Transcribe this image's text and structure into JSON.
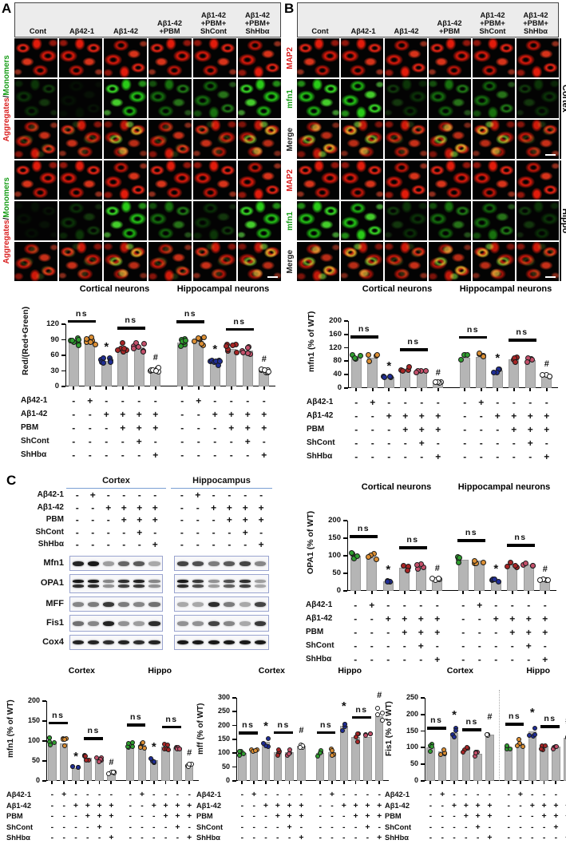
{
  "figure": {
    "panel_labels": {
      "A": "A",
      "B": "B",
      "C": "C"
    }
  },
  "treatments": {
    "row_labels": [
      "Aβ42-1",
      "Aβ1-42",
      "PBM",
      "ShCont",
      "ShHbα"
    ],
    "pattern_per_group": [
      [
        "-",
        "+",
        "-",
        "-",
        "-",
        "-"
      ],
      [
        "-",
        "-",
        "+",
        "+",
        "+",
        "+"
      ],
      [
        "-",
        "-",
        "-",
        "+",
        "+",
        "+"
      ],
      [
        "-",
        "-",
        "-",
        "-",
        "+",
        "-"
      ],
      [
        "-",
        "-",
        "-",
        "-",
        "-",
        "+"
      ]
    ]
  },
  "panelA": {
    "label": "A",
    "col_headers": [
      "Cont",
      "Aβ42-1",
      "Aβ1-42",
      "Aβ1-42\n+PBM",
      "Aβ1-42\n+PBM+\nShCont",
      "Aβ1-42\n+PBM+\nShHbα"
    ],
    "side_label": {
      "aggregates": "Aggregates",
      "separator": "/",
      "monomers": "Monomers"
    },
    "image_rows": [
      {
        "type": "red",
        "tones": [
          "hi",
          "hi",
          "hi",
          "hi",
          "hi",
          "hi"
        ]
      },
      {
        "type": "green",
        "tones": [
          "dim",
          "off",
          "hi",
          "mid",
          "mid",
          "hi"
        ]
      },
      {
        "type": "merge",
        "tones": [
          "mid",
          "mid",
          "hi",
          "mid",
          "mid",
          "hi"
        ]
      },
      {
        "type": "red",
        "tones": [
          "hi",
          "hi",
          "hi",
          "hi",
          "hi",
          "hi"
        ]
      },
      {
        "type": "green",
        "tones": [
          "off",
          "dim",
          "hi",
          "mid",
          "dim",
          "hi"
        ]
      },
      {
        "type": "merge",
        "tones": [
          "mid",
          "mid",
          "hi",
          "mid",
          "mid",
          "hi"
        ]
      }
    ],
    "scalebars": [
      [
        5,
        5
      ]
    ]
  },
  "panelB": {
    "label": "B",
    "col_headers": [
      "Cont",
      "Aβ42-1",
      "Aβ1-42",
      "Aβ1-42\n+PBM",
      "Aβ1-42\n+PBM+\nShCont",
      "Aβ1-42\n+PBM+\nShHbα"
    ],
    "row_labels": [
      {
        "text": "MAP2",
        "color": "#d91f1f"
      },
      {
        "text": "mfn1",
        "color": "#1a9e1a"
      },
      {
        "text": "Merge",
        "color": "#222222"
      },
      {
        "text": "MAP2",
        "color": "#d91f1f"
      },
      {
        "text": "mfn1",
        "color": "#1a9e1a"
      },
      {
        "text": "Merge",
        "color": "#222222"
      }
    ],
    "region_labels": [
      "Cortex",
      "Hippo"
    ],
    "image_rows": [
      {
        "type": "red",
        "tones": [
          "hi",
          "hi",
          "hi",
          "hi",
          "hi",
          "hi"
        ]
      },
      {
        "type": "green",
        "tones": [
          "hi",
          "hi",
          "dim",
          "mid",
          "mid",
          "dim"
        ]
      },
      {
        "type": "merge",
        "tones": [
          "hi",
          "hi",
          "mid",
          "hi",
          "hi",
          "mid"
        ]
      },
      {
        "type": "red",
        "tones": [
          "hi",
          "hi",
          "hi",
          "hi",
          "hi",
          "hi"
        ]
      },
      {
        "type": "green",
        "tones": [
          "hi",
          "hi",
          "dim",
          "mid",
          "mid",
          "dim"
        ]
      },
      {
        "type": "merge",
        "tones": [
          "hi",
          "hi",
          "mid",
          "hi",
          "hi",
          "mid"
        ]
      }
    ],
    "scalebars": [
      [
        2,
        5
      ],
      [
        5,
        5
      ]
    ]
  },
  "panelC": {
    "label": "C",
    "blot_group_titles": [
      "Cortex",
      "Hippocampus"
    ],
    "blots": [
      {
        "name": "Mfn1",
        "double": false,
        "cortex": [
          0.95,
          1,
          0.4,
          0.65,
          0.7,
          0.35
        ],
        "hippo": [
          0.8,
          0.75,
          0.55,
          0.7,
          0.8,
          0.5
        ]
      },
      {
        "name": "OPA1",
        "double": true,
        "cortex": [
          1,
          1,
          0.5,
          0.9,
          0.95,
          0.5
        ],
        "hippo": [
          1,
          0.85,
          0.45,
          0.75,
          0.9,
          0.4
        ]
      },
      {
        "name": "MFF",
        "double": false,
        "cortex": [
          0.5,
          0.55,
          0.85,
          0.55,
          0.5,
          0.6
        ],
        "hippo": [
          0.35,
          0.35,
          0.9,
          0.55,
          0.35,
          0.8
        ]
      },
      {
        "name": "Fis1",
        "double": false,
        "cortex": [
          0.6,
          0.5,
          0.95,
          0.45,
          0.4,
          0.9
        ],
        "hippo": [
          0.45,
          0.45,
          0.8,
          0.5,
          0.35,
          0.85
        ]
      },
      {
        "name": "Cox4",
        "double": false,
        "cortex": [
          0.95,
          0.95,
          0.9,
          0.95,
          0.9,
          0.95
        ],
        "hippo": [
          1,
          1,
          1,
          1,
          1,
          1
        ]
      }
    ]
  },
  "significance": {
    "ns_label": "ns",
    "ns_pairs": [
      [
        0,
        1
      ],
      [
        3,
        4
      ]
    ],
    "star": {
      "bar": 2,
      "symbol": "*"
    },
    "hash": {
      "bar": 5,
      "symbol": "#"
    }
  },
  "chart_data": [
    {
      "id": "red_green_ratio",
      "type": "bar",
      "categories": [
        "Cont",
        "Aβ42-1",
        "Aβ1-42",
        "Aβ1-42+PBM",
        "Aβ1-42+PBM+ShCont",
        "Aβ1-42+PBM+ShHbα"
      ],
      "ylabel": "Red/(Red+Green)",
      "ylim": [
        0,
        120
      ],
      "ystep": 30,
      "series": [
        {
          "name": "Cortical neurons",
          "values": [
            85,
            88,
            50,
            75,
            75,
            32
          ]
        },
        {
          "name": "Hippocampal neurons",
          "values": [
            85,
            87,
            45,
            73,
            70,
            30
          ]
        }
      ],
      "annotations": [
        "ns: bars 1-2",
        "* bar 3",
        "ns: bars 4-5",
        "# bar 6"
      ]
    },
    {
      "id": "mfn1_icc",
      "type": "bar",
      "categories": [
        "Cont",
        "Aβ42-1",
        "Aβ1-42",
        "Aβ1-42+PBM",
        "Aβ1-42+PBM+ShCont",
        "Aβ1-42+PBM+ShHbα"
      ],
      "ylabel": "mfn1 (% of WT)",
      "ylim": [
        0,
        200
      ],
      "ystep": 40,
      "series": [
        {
          "name": "Cortical neurons",
          "values": [
            95,
            90,
            33,
            57,
            52,
            17
          ]
        },
        {
          "name": "Hippocampal neurons",
          "values": [
            90,
            93,
            52,
            85,
            83,
            38
          ]
        }
      ],
      "annotations": [
        "ns: bars 1-2",
        "* bar 3",
        "ns: bars 4-5",
        "# bar 6"
      ]
    },
    {
      "id": "opa1_wb",
      "type": "bar",
      "categories": [
        "Cont",
        "Aβ42-1",
        "Aβ1-42",
        "Aβ1-42+PBM",
        "Aβ1-42+PBM+ShCont",
        "Aβ1-42+PBM+ShHbα"
      ],
      "ylabel": "OPA1 (% of WT)",
      "ylim": [
        0,
        200
      ],
      "ystep": 50,
      "series": [
        {
          "name": "Cortical neurons",
          "values": [
            100,
            95,
            28,
            65,
            68,
            33
          ]
        },
        {
          "name": "Hippocampal neurons",
          "values": [
            88,
            87,
            30,
            75,
            75,
            30
          ]
        }
      ],
      "annotations": [
        "ns: bars 1-2",
        "* bar 3",
        "ns: bars 4-5",
        "# bar 6"
      ]
    },
    {
      "id": "mfn1_wb",
      "type": "bar",
      "categories": [
        "Cont",
        "Aβ42-1",
        "Aβ1-42",
        "Aβ1-42+PBM",
        "Aβ1-42+PBM+ShCont",
        "Aβ1-42+PBM+ShHbα"
      ],
      "ylabel": "mfn1 (% of WT)",
      "ylim": [
        0,
        200
      ],
      "ystep": 50,
      "series": [
        {
          "name": "Cortex",
          "values": [
            97,
            95,
            33,
            58,
            53,
            20
          ]
        },
        {
          "name": "Hippo",
          "values": [
            92,
            90,
            52,
            87,
            85,
            40
          ]
        }
      ],
      "annotations": [
        "ns: bars 1-2",
        "* bar 3",
        "ns: bars 4-5",
        "# bar 6"
      ]
    },
    {
      "id": "mff_wb",
      "type": "bar",
      "categories": [
        "Cont",
        "Aβ42-1",
        "Aβ1-42",
        "Aβ1-42+PBM",
        "Aβ1-42+PBM+ShCont",
        "Aβ1-42+PBM+ShHbα"
      ],
      "ylabel": "mff (% of WT)",
      "ylim": [
        0,
        300
      ],
      "ystep": 50,
      "series": [
        {
          "name": "Cortex",
          "values": [
            100,
            103,
            140,
            103,
            105,
            128
          ]
        },
        {
          "name": "Hippo",
          "values": [
            100,
            105,
            200,
            160,
            158,
            235
          ]
        }
      ],
      "annotations": [
        "ns: bars 1-2",
        "* bar 3",
        "ns: bars 4-5",
        "# bar 6"
      ]
    },
    {
      "id": "fis1_wb",
      "type": "bar",
      "divider": true,
      "categories": [
        "Cont",
        "Aβ42-1",
        "Aβ1-42",
        "Aβ1-42+PBM",
        "Aβ1-42+PBM+ShCont",
        "Aβ1-42+PBM+ShHbα"
      ],
      "ylabel": "Fis1 (% of WT)",
      "ylim": [
        0,
        250
      ],
      "ystep": 50,
      "series": [
        {
          "name": "Cortex",
          "values": [
            100,
            90,
            145,
            95,
            82,
            140
          ]
        },
        {
          "name": "Hippo",
          "values": [
            100,
            112,
            150,
            105,
            103,
            130
          ]
        }
      ],
      "annotations": [
        "ns: bars 1-2",
        "* bar 3",
        "ns: bars 4-5",
        "# bar 6"
      ]
    }
  ],
  "colors": {
    "bar_fill": "#b5b5b5",
    "dots": [
      "#2f9e2f",
      "#dd8f33",
      "#1f2d96",
      "#a82525",
      "#c4506b",
      "#ffffff"
    ],
    "blot_border": "#9aa4cf",
    "red_channel": "#f2281a",
    "green_channel": "#2ddc1f"
  }
}
